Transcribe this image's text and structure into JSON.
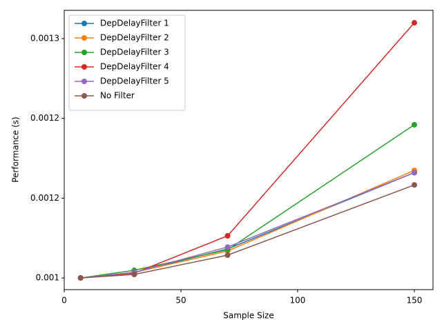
{
  "chart_data": {
    "type": "line",
    "xlabel": "Sample Size",
    "ylabel": "Performance (s)",
    "x": [
      7,
      30,
      70,
      150
    ],
    "series": [
      {
        "name": "DepDelayFilter 1",
        "color": "#1f77b4",
        "values": [
          0.00114,
          0.0011435,
          0.0011582,
          0.001206
        ]
      },
      {
        "name": "DepDelayFilter 2",
        "color": "#ff7f0e",
        "values": [
          0.00114,
          0.0011435,
          0.0011569,
          0.0012074
        ]
      },
      {
        "name": "DepDelayFilter 3",
        "color": "#2ca02c",
        "values": [
          0.00114,
          0.0011448,
          0.0011577,
          0.001236
        ]
      },
      {
        "name": "DepDelayFilter 4",
        "color": "#d62728",
        "values": [
          0.00114,
          0.001143,
          0.0011664,
          0.0012999
        ]
      },
      {
        "name": "DepDelayFilter 5",
        "color": "#9467bd",
        "values": [
          0.00114,
          0.0011435,
          0.0011594,
          0.001206
        ]
      },
      {
        "name": "No Filter",
        "color": "#8c564b",
        "values": [
          0.00114,
          0.0011422,
          0.0011543,
          0.0011983
        ]
      }
    ],
    "xlim": [
      0,
      158
    ],
    "xticks": [
      0,
      50,
      100,
      150
    ],
    "ylim": [
      0.0011327,
      0.0013077
    ],
    "yticks": [
      {
        "value": 0.00114,
        "label": "0.001"
      },
      {
        "value": 0.00119,
        "label": "0.0012"
      },
      {
        "value": 0.00124,
        "label": "0.0012"
      },
      {
        "value": 0.00129,
        "label": "0.0013"
      }
    ],
    "legend": "upper left",
    "grid": false
  }
}
